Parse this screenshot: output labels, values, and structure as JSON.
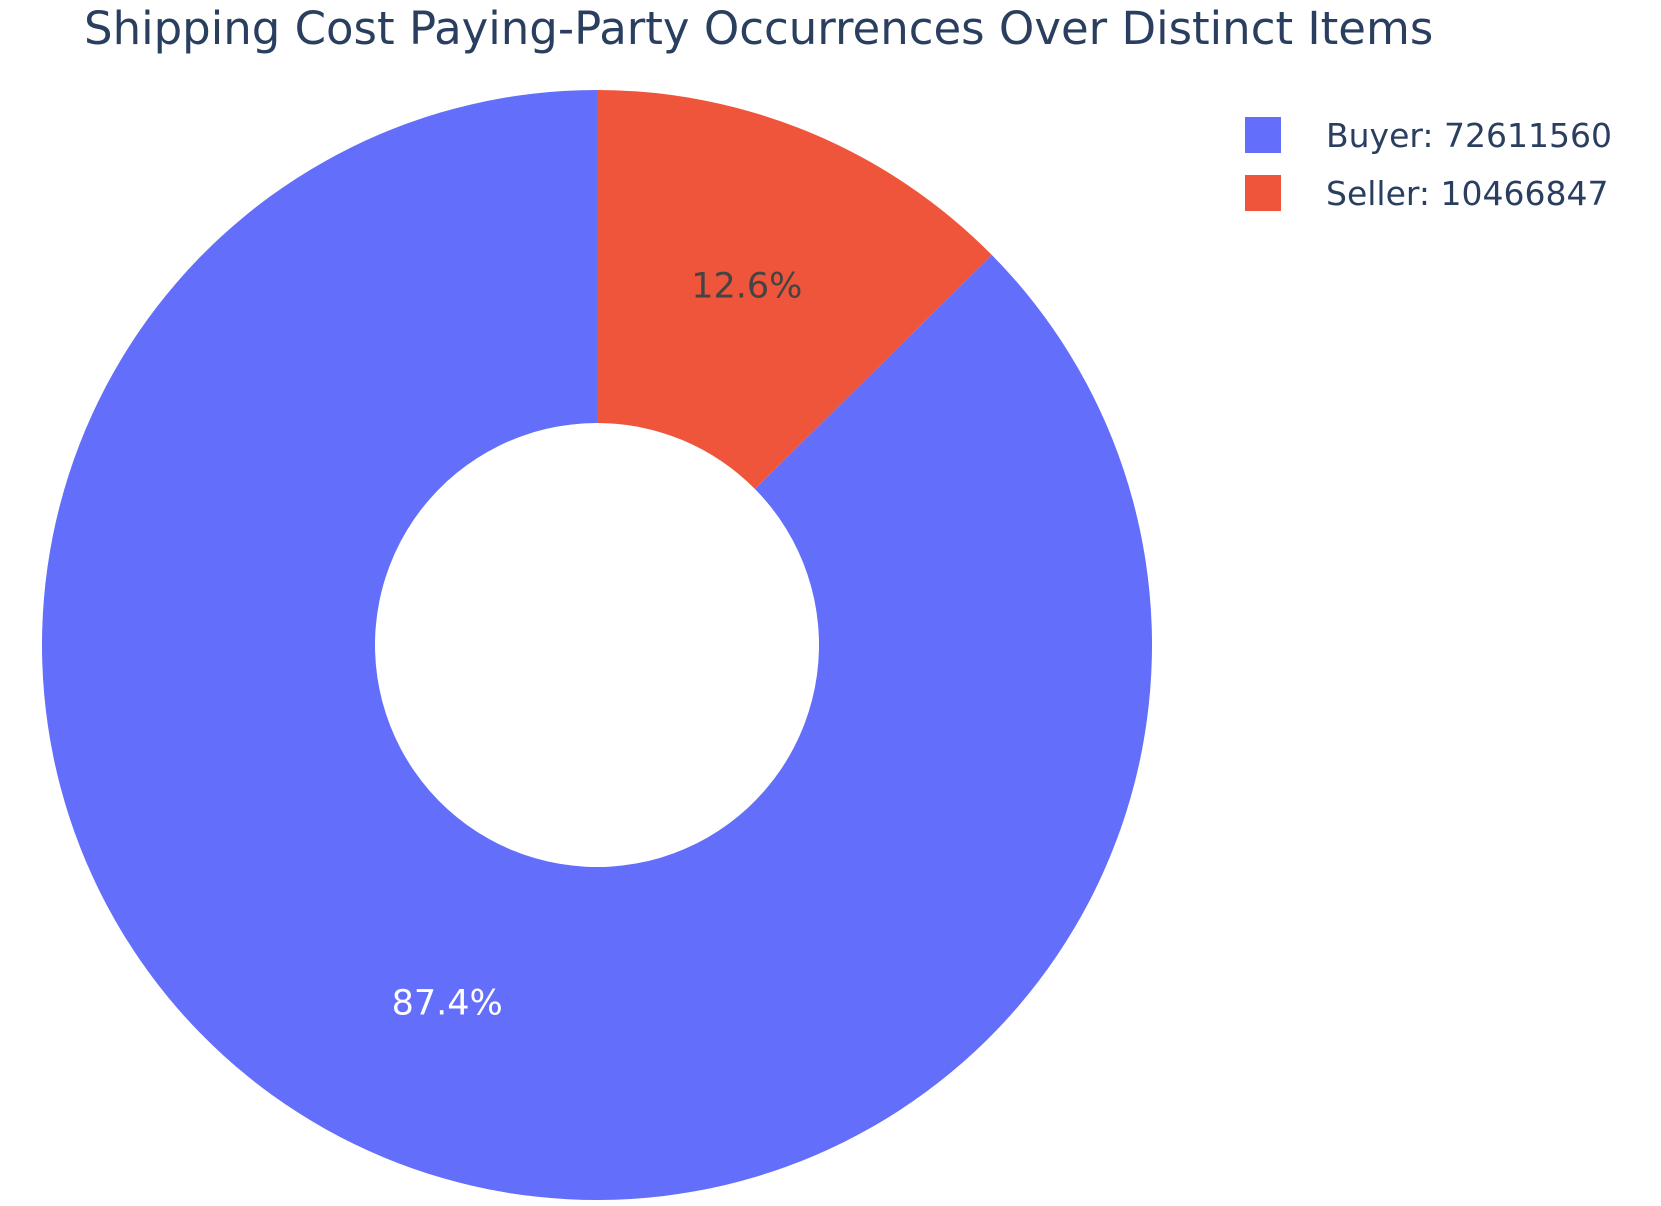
{
  "chart_data": {
    "type": "pie",
    "title": "Shipping Cost Paying-Party Occurrences Over Distinct Items",
    "hole": 0.4,
    "sort": "descending",
    "direction": "counterclockwise",
    "slices": [
      {
        "label": "Buyer",
        "value": 72611560,
        "percent_label": "87.4%",
        "legend_label": "Buyer: 72611560",
        "color": "#636efa",
        "text_color": "#ffffff"
      },
      {
        "label": "Seller",
        "value": 10466847,
        "percent_label": "12.6%",
        "legend_label": "Seller: 10466847",
        "color": "#ef553b",
        "text_color": "#444444"
      }
    ],
    "legend_position": "top-right"
  }
}
